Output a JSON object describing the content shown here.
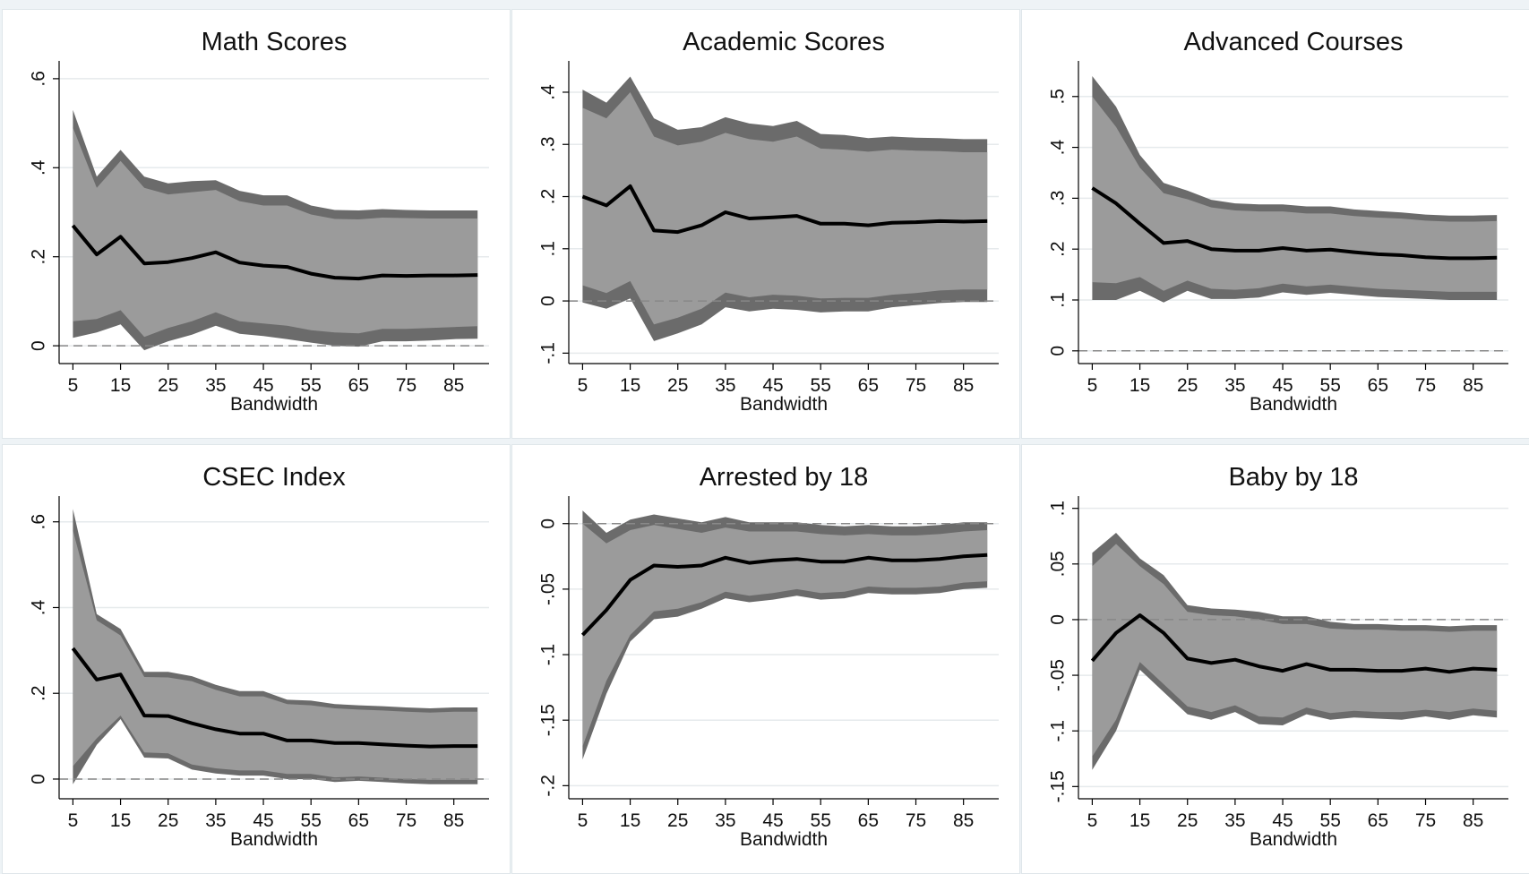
{
  "chart_data": [
    {
      "type": "band-line",
      "title": "Math Scores",
      "x_label": "Bandwidth",
      "x": [
        5,
        10,
        15,
        20,
        25,
        30,
        35,
        40,
        45,
        50,
        55,
        60,
        65,
        70,
        75,
        80,
        85,
        90
      ],
      "values": [
        0.27,
        0.205,
        0.245,
        0.185,
        0.188,
        0.197,
        0.21,
        0.187,
        0.18,
        0.177,
        0.162,
        0.153,
        0.151,
        0.158,
        0.157,
        0.158,
        0.158,
        0.159
      ],
      "outer_band": {
        "upper": [
          0.53,
          0.38,
          0.44,
          0.38,
          0.365,
          0.37,
          0.372,
          0.348,
          0.338,
          0.338,
          0.315,
          0.305,
          0.304,
          0.307,
          0.305,
          0.304,
          0.304,
          0.304
        ],
        "lower": [
          0.018,
          0.03,
          0.048,
          -0.01,
          0.01,
          0.025,
          0.045,
          0.027,
          0.022,
          0.015,
          0.007,
          0.0,
          -0.002,
          0.01,
          0.01,
          0.012,
          0.015,
          0.016
        ]
      },
      "inner_band": {
        "upper": [
          0.49,
          0.355,
          0.415,
          0.355,
          0.34,
          0.345,
          0.35,
          0.325,
          0.315,
          0.315,
          0.295,
          0.285,
          0.284,
          0.288,
          0.287,
          0.286,
          0.286,
          0.286
        ],
        "lower": [
          0.055,
          0.06,
          0.08,
          0.02,
          0.04,
          0.055,
          0.075,
          0.055,
          0.05,
          0.045,
          0.035,
          0.03,
          0.028,
          0.038,
          0.038,
          0.04,
          0.042,
          0.044
        ]
      },
      "xlim": [
        2.1,
        92.4
      ],
      "xticks": [
        5,
        15,
        25,
        35,
        45,
        55,
        65,
        75,
        85
      ],
      "ylim": [
        -0.04,
        0.64
      ],
      "yticks": [
        0,
        {
          "value": 0.2,
          "label": ".2"
        },
        {
          "value": 0.4,
          "label": ".4"
        },
        {
          "value": 0.6,
          "label": ".6"
        }
      ],
      "reference_line": 0,
      "grid": true,
      "line_color": "#000000",
      "outer_color": "#6b6b6b",
      "inner_color": "#9b9b9b"
    },
    {
      "type": "band-line",
      "title": "Academic Scores",
      "x_label": "Bandwidth",
      "x": [
        5,
        10,
        15,
        20,
        25,
        30,
        35,
        40,
        45,
        50,
        55,
        60,
        65,
        70,
        75,
        80,
        85,
        90
      ],
      "values": [
        0.2,
        0.183,
        0.22,
        0.135,
        0.132,
        0.145,
        0.17,
        0.158,
        0.16,
        0.163,
        0.148,
        0.148,
        0.145,
        0.15,
        0.151,
        0.153,
        0.152,
        0.153
      ],
      "outer_band": {
        "upper": [
          0.405,
          0.38,
          0.43,
          0.35,
          0.328,
          0.333,
          0.352,
          0.34,
          0.335,
          0.345,
          0.32,
          0.318,
          0.312,
          0.315,
          0.313,
          0.312,
          0.31,
          0.31
        ],
        "lower": [
          -0.003,
          -0.015,
          0.005,
          -0.077,
          -0.062,
          -0.045,
          -0.012,
          -0.02,
          -0.015,
          -0.017,
          -0.022,
          -0.02,
          -0.02,
          -0.012,
          -0.008,
          -0.004,
          -0.002,
          -0.002
        ]
      },
      "inner_band": {
        "upper": [
          0.37,
          0.35,
          0.4,
          0.315,
          0.298,
          0.305,
          0.322,
          0.31,
          0.305,
          0.315,
          0.292,
          0.29,
          0.286,
          0.29,
          0.288,
          0.287,
          0.285,
          0.285
        ],
        "lower": [
          0.03,
          0.015,
          0.038,
          -0.045,
          -0.032,
          -0.015,
          0.016,
          0.007,
          0.012,
          0.01,
          0.005,
          0.006,
          0.006,
          0.012,
          0.015,
          0.02,
          0.022,
          0.022
        ]
      },
      "xlim": [
        2.1,
        92.4
      ],
      "xticks": [
        5,
        15,
        25,
        35,
        45,
        55,
        65,
        75,
        85
      ],
      "ylim": [
        -0.12,
        0.46
      ],
      "yticks": [
        {
          "value": -0.1,
          "label": "-.1"
        },
        0,
        {
          "value": 0.1,
          "label": ".1"
        },
        {
          "value": 0.2,
          "label": ".2"
        },
        {
          "value": 0.3,
          "label": ".3"
        },
        {
          "value": 0.4,
          "label": ".4"
        }
      ],
      "reference_line": 0,
      "grid": true,
      "line_color": "#000000",
      "outer_color": "#6b6b6b",
      "inner_color": "#9b9b9b"
    },
    {
      "type": "band-line",
      "title": "Advanced Courses",
      "x_label": "Bandwidth",
      "x": [
        5,
        10,
        15,
        20,
        25,
        30,
        35,
        40,
        45,
        50,
        55,
        60,
        65,
        70,
        75,
        80,
        85,
        90
      ],
      "values": [
        0.32,
        0.29,
        0.25,
        0.212,
        0.216,
        0.2,
        0.197,
        0.197,
        0.202,
        0.197,
        0.199,
        0.194,
        0.19,
        0.188,
        0.184,
        0.182,
        0.182,
        0.183
      ],
      "outer_band": {
        "upper": [
          0.54,
          0.48,
          0.385,
          0.33,
          0.315,
          0.297,
          0.29,
          0.288,
          0.288,
          0.284,
          0.284,
          0.278,
          0.275,
          0.272,
          0.268,
          0.266,
          0.266,
          0.267
        ],
        "lower": [
          0.1,
          0.1,
          0.118,
          0.095,
          0.118,
          0.102,
          0.102,
          0.105,
          0.115,
          0.11,
          0.114,
          0.11,
          0.106,
          0.104,
          0.102,
          0.1,
          0.1,
          0.1
        ]
      },
      "inner_band": {
        "upper": [
          0.5,
          0.44,
          0.36,
          0.31,
          0.298,
          0.282,
          0.276,
          0.274,
          0.274,
          0.27,
          0.27,
          0.265,
          0.262,
          0.26,
          0.256,
          0.254,
          0.254,
          0.255
        ],
        "lower": [
          0.135,
          0.133,
          0.145,
          0.118,
          0.138,
          0.122,
          0.12,
          0.123,
          0.132,
          0.127,
          0.13,
          0.126,
          0.122,
          0.12,
          0.118,
          0.116,
          0.116,
          0.116
        ]
      },
      "xlim": [
        2.1,
        92.4
      ],
      "xticks": [
        5,
        15,
        25,
        35,
        45,
        55,
        65,
        75,
        85
      ],
      "ylim": [
        -0.025,
        0.57
      ],
      "yticks": [
        0,
        {
          "value": 0.1,
          "label": ".1"
        },
        {
          "value": 0.2,
          "label": ".2"
        },
        {
          "value": 0.3,
          "label": ".3"
        },
        {
          "value": 0.4,
          "label": ".4"
        },
        {
          "value": 0.5,
          "label": ".5"
        }
      ],
      "reference_line": 0,
      "grid": true,
      "line_color": "#000000",
      "outer_color": "#6b6b6b",
      "inner_color": "#9b9b9b"
    },
    {
      "type": "band-line",
      "title": "CSEC Index",
      "x_label": "Bandwidth",
      "x": [
        5,
        10,
        15,
        20,
        25,
        30,
        35,
        40,
        45,
        50,
        55,
        60,
        65,
        70,
        75,
        80,
        85,
        90
      ],
      "values": [
        0.305,
        0.232,
        0.244,
        0.148,
        0.147,
        0.13,
        0.116,
        0.106,
        0.106,
        0.09,
        0.09,
        0.084,
        0.084,
        0.081,
        0.078,
        0.076,
        0.077,
        0.077
      ],
      "outer_band": {
        "upper": [
          0.63,
          0.385,
          0.35,
          0.25,
          0.25,
          0.24,
          0.22,
          0.205,
          0.205,
          0.185,
          0.183,
          0.175,
          0.172,
          0.17,
          0.167,
          0.165,
          0.167,
          0.167
        ],
        "lower": [
          -0.012,
          0.08,
          0.14,
          0.05,
          0.048,
          0.022,
          0.013,
          0.008,
          0.008,
          0.0,
          0.0,
          -0.007,
          -0.004,
          -0.007,
          -0.01,
          -0.012,
          -0.012,
          -0.012
        ]
      },
      "inner_band": {
        "upper": [
          0.58,
          0.37,
          0.335,
          0.238,
          0.237,
          0.228,
          0.208,
          0.193,
          0.193,
          0.175,
          0.172,
          0.165,
          0.162,
          0.16,
          0.157,
          0.155,
          0.157,
          0.157
        ],
        "lower": [
          0.03,
          0.095,
          0.148,
          0.062,
          0.06,
          0.034,
          0.025,
          0.02,
          0.02,
          0.012,
          0.012,
          0.004,
          0.006,
          0.003,
          0.0,
          -0.002,
          -0.002,
          -0.002
        ]
      },
      "xlim": [
        2.1,
        92.4
      ],
      "xticks": [
        5,
        15,
        25,
        35,
        45,
        55,
        65,
        75,
        85
      ],
      "ylim": [
        -0.046,
        0.66
      ],
      "yticks": [
        0,
        {
          "value": 0.2,
          "label": ".2"
        },
        {
          "value": 0.4,
          "label": ".4"
        },
        {
          "value": 0.6,
          "label": ".6"
        }
      ],
      "reference_line": 0,
      "grid": true,
      "line_color": "#000000",
      "outer_color": "#6b6b6b",
      "inner_color": "#9b9b9b"
    },
    {
      "type": "band-line",
      "title": "Arrested by 18",
      "x_label": "Bandwidth",
      "x": [
        5,
        10,
        15,
        20,
        25,
        30,
        35,
        40,
        45,
        50,
        55,
        60,
        65,
        70,
        75,
        80,
        85,
        90
      ],
      "values": [
        -0.085,
        -0.066,
        -0.043,
        -0.032,
        -0.033,
        -0.032,
        -0.026,
        -0.03,
        -0.028,
        -0.027,
        -0.029,
        -0.029,
        -0.026,
        -0.028,
        -0.028,
        -0.027,
        -0.025,
        -0.024
      ],
      "outer_band": {
        "upper": [
          0.01,
          -0.007,
          0.003,
          0.007,
          0.004,
          0.001,
          0.005,
          0.001,
          0.001,
          0.001,
          -0.001,
          -0.002,
          -0.001,
          -0.002,
          -0.002,
          -0.001,
          0.001,
          0.001
        ],
        "lower": [
          -0.18,
          -0.13,
          -0.09,
          -0.073,
          -0.071,
          -0.065,
          -0.057,
          -0.06,
          -0.058,
          -0.055,
          -0.058,
          -0.057,
          -0.053,
          -0.054,
          -0.054,
          -0.053,
          -0.05,
          -0.049
        ]
      },
      "inner_band": {
        "upper": [
          0.0,
          -0.015,
          -0.005,
          -0.001,
          -0.004,
          -0.007,
          -0.003,
          -0.006,
          -0.006,
          -0.006,
          -0.008,
          -0.009,
          -0.008,
          -0.009,
          -0.009,
          -0.008,
          -0.006,
          -0.005
        ],
        "lower": [
          -0.17,
          -0.12,
          -0.085,
          -0.067,
          -0.065,
          -0.06,
          -0.052,
          -0.055,
          -0.053,
          -0.05,
          -0.053,
          -0.052,
          -0.048,
          -0.049,
          -0.049,
          -0.048,
          -0.045,
          -0.044
        ]
      },
      "xlim": [
        2.1,
        92.4
      ],
      "xticks": [
        5,
        15,
        25,
        35,
        45,
        55,
        65,
        75,
        85
      ],
      "ylim": [
        -0.21,
        0.021
      ],
      "yticks": [
        {
          "value": -0.2,
          "label": "-.2"
        },
        {
          "value": -0.15,
          "label": "-.15"
        },
        {
          "value": -0.1,
          "label": "-.1"
        },
        {
          "value": -0.05,
          "label": "-.05"
        },
        0
      ],
      "reference_line": 0,
      "grid": true,
      "line_color": "#000000",
      "outer_color": "#6b6b6b",
      "inner_color": "#9b9b9b"
    },
    {
      "type": "band-line",
      "title": "Baby by 18",
      "x_label": "Bandwidth",
      "x": [
        5,
        10,
        15,
        20,
        25,
        30,
        35,
        40,
        45,
        50,
        55,
        60,
        65,
        70,
        75,
        80,
        85,
        90
      ],
      "values": [
        -0.037,
        -0.012,
        0.004,
        -0.012,
        -0.035,
        -0.039,
        -0.036,
        -0.042,
        -0.046,
        -0.04,
        -0.045,
        -0.045,
        -0.046,
        -0.046,
        -0.044,
        -0.047,
        -0.044,
        -0.045
      ],
      "outer_band": {
        "upper": [
          0.06,
          0.078,
          0.055,
          0.04,
          0.013,
          0.01,
          0.009,
          0.007,
          0.003,
          0.003,
          -0.002,
          -0.004,
          -0.004,
          -0.005,
          -0.005,
          -0.006,
          -0.005,
          -0.005
        ],
        "lower": [
          -0.135,
          -0.1,
          -0.045,
          -0.065,
          -0.085,
          -0.09,
          -0.083,
          -0.094,
          -0.095,
          -0.085,
          -0.09,
          -0.088,
          -0.089,
          -0.09,
          -0.087,
          -0.09,
          -0.086,
          -0.088
        ]
      },
      "inner_band": {
        "upper": [
          0.048,
          0.068,
          0.048,
          0.032,
          0.007,
          0.004,
          0.003,
          0.0,
          -0.004,
          -0.004,
          -0.008,
          -0.009,
          -0.009,
          -0.01,
          -0.01,
          -0.011,
          -0.01,
          -0.01
        ],
        "lower": [
          -0.123,
          -0.09,
          -0.038,
          -0.058,
          -0.078,
          -0.083,
          -0.077,
          -0.087,
          -0.088,
          -0.079,
          -0.084,
          -0.082,
          -0.083,
          -0.083,
          -0.081,
          -0.083,
          -0.08,
          -0.082
        ]
      },
      "xlim": [
        2.1,
        92.4
      ],
      "xticks": [
        5,
        15,
        25,
        35,
        45,
        55,
        65,
        75,
        85
      ],
      "ylim": [
        -0.161,
        0.111
      ],
      "yticks": [
        {
          "value": -0.15,
          "label": "-.15"
        },
        {
          "value": -0.1,
          "label": "-.1"
        },
        {
          "value": -0.05,
          "label": "-.05"
        },
        0,
        {
          "value": 0.05,
          "label": ".05"
        },
        {
          "value": 0.1,
          "label": ".1"
        }
      ],
      "reference_line": 0,
      "grid": true,
      "line_color": "#000000",
      "outer_color": "#6b6b6b",
      "inner_color": "#9b9b9b"
    }
  ]
}
